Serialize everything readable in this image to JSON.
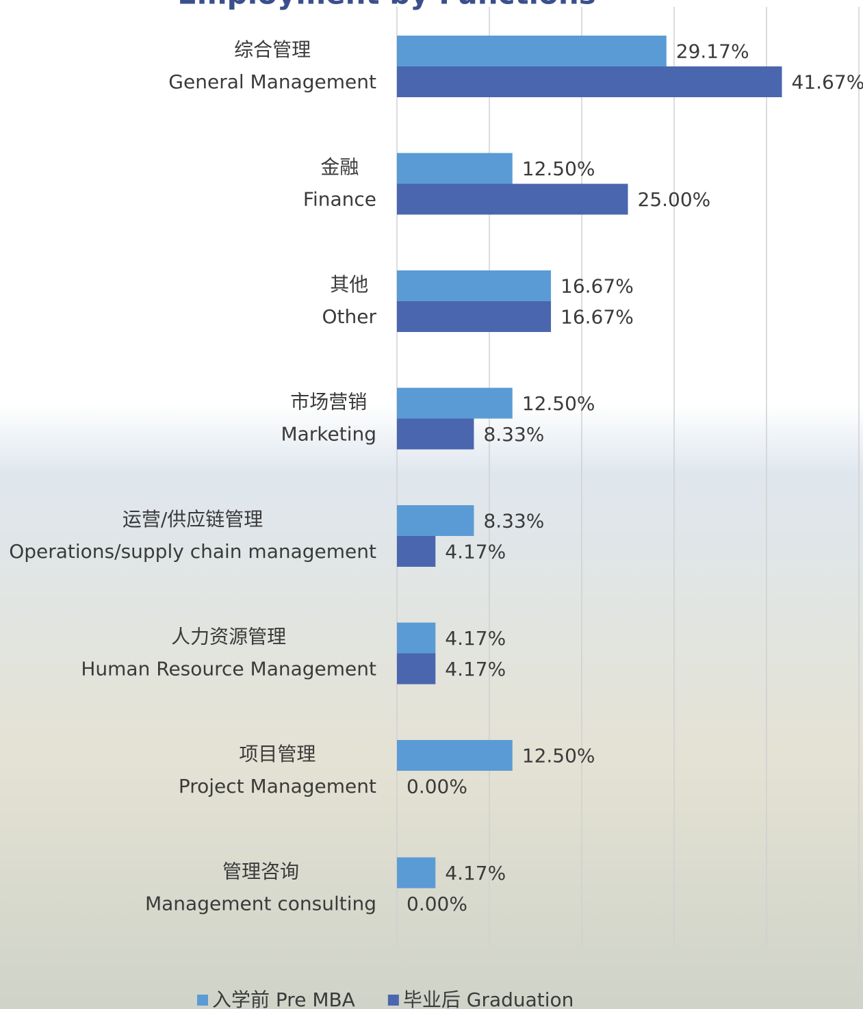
{
  "chart_data": {
    "type": "barh",
    "title": "Employment by Functions",
    "categories": [
      [
        "综合管理",
        "General  Management"
      ],
      [
        "金融",
        "Finance"
      ],
      [
        "其他",
        "Other"
      ],
      [
        "市场营销",
        "Marketing"
      ],
      [
        "运营/供应链管理",
        "Operations/supply chain management"
      ],
      [
        "人力资源管理",
        "Human Resource Management"
      ],
      [
        "项目管理",
        "Project Management"
      ],
      [
        "管理咨询",
        "Management consulting"
      ]
    ],
    "series": [
      {
        "name": "入学前 Pre MBA",
        "color": "#5b9bd5",
        "values": [
          29.17,
          12.5,
          16.67,
          12.5,
          8.33,
          4.17,
          12.5,
          4.17
        ],
        "value_labels": [
          "29.17%",
          "12.50%",
          "16.67%",
          "12.50%",
          "8.33%",
          "4.17%",
          "12.50%",
          "4.17%"
        ]
      },
      {
        "name": "毕业后 Graduation",
        "color": "#4a66ae",
        "values": [
          41.67,
          25.0,
          16.67,
          8.33,
          4.17,
          4.17,
          0.0,
          0.0
        ],
        "value_labels": [
          "41.67%",
          "25.00%",
          "16.67%",
          "8.33%",
          "4.17%",
          "4.17%",
          "0.00%",
          "0.00%"
        ]
      }
    ],
    "xlim": [
      0,
      50
    ],
    "xticks": [
      0,
      10,
      20,
      30,
      40,
      50
    ],
    "grid": true,
    "legend": "bottom"
  }
}
